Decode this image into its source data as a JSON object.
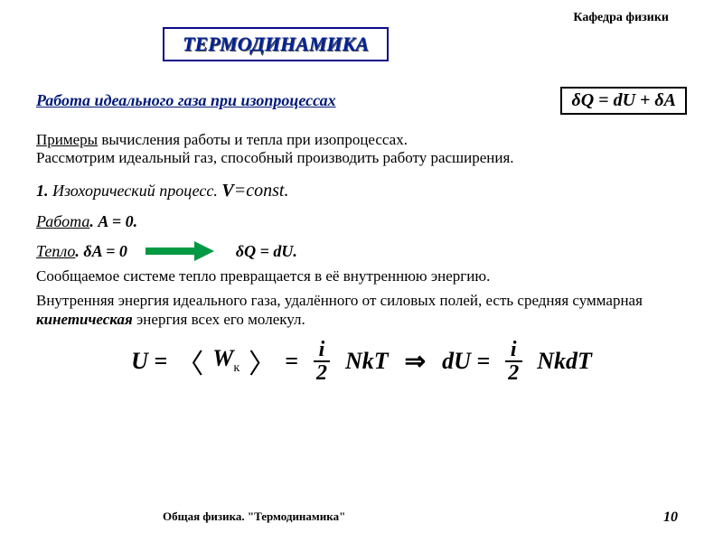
{
  "dept": "Кафедра физики",
  "title": "ТЕРМОДИНАМИКА",
  "section_title": "Работа идеального газа при изопроцессах",
  "main_eq": "δQ = dU + δA",
  "intro_examples": "Примеры",
  "intro_text_1": " вычисления работы и тепла   при изопроцессах.",
  "intro_text_2": "Рассмотрим идеальный газ, способный производить работу расширения.",
  "process_num": " 1.  ",
  "process_name": "Изохорический процесс.  ",
  "process_var": "V",
  "process_eq": "=const.",
  "work_label": "Работа",
  "work_expr": ".   A = 0.",
  "heat_label": "Тепло",
  "heat_expr_1": ".       δA = 0",
  "heat_expr_2": "δQ = dU.",
  "text_1": "Сообщаемое системе тепло превращается в её внутреннюю энергию.",
  "text_2a": "Внутренняя энергия идеального газа, удалённого от силовых полей, есть средняя суммарная ",
  "text_2b": "кинетическая",
  "text_2c": "  энергия всех его молекул.",
  "formula": {
    "U": "U = ",
    "angle_l": "〈",
    "Wk": "W",
    "Wk_sub": "к",
    "angle_r": "〉",
    "eq1": " = ",
    "frac_i": "i",
    "frac_2": "2",
    "NkT": " NkT",
    "implies": "⇒",
    "dU": "dU = ",
    "NkdT": " NkdT"
  },
  "footer_text": "Общая физика. \"Термодинамика\"",
  "page_num": "10",
  "colors": {
    "title_border": "#0a0a8a",
    "title_text": "#002299",
    "section_text": "#001a7a",
    "arrow": "#009944"
  }
}
